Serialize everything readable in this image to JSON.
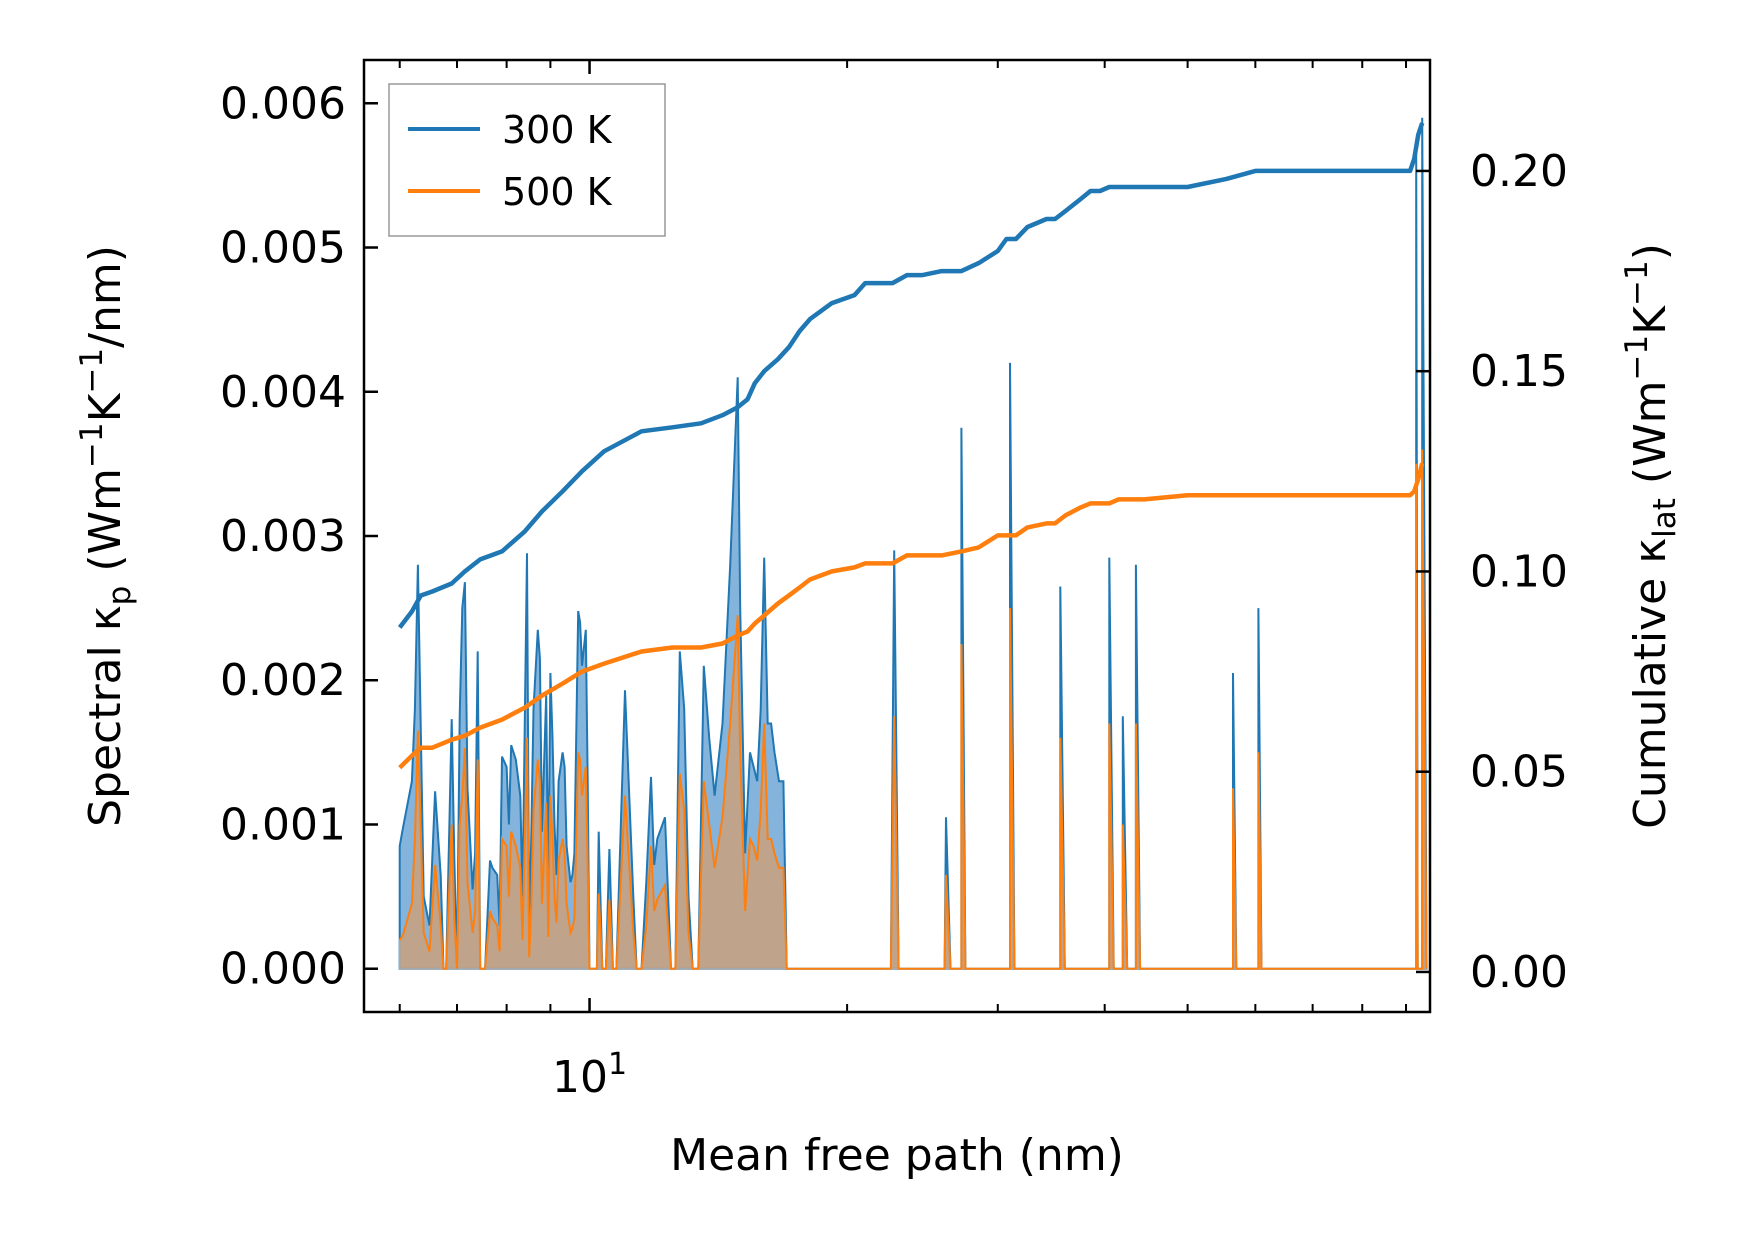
{
  "chart_data": {
    "type": "line",
    "x_scale": "log",
    "xlabel": "Mean free path (nm)",
    "ylabel_left": {
      "prefix": "Spectral κ",
      "sub": "p",
      "suffix": " (Wm",
      "sup1": "−1",
      "mid": "K",
      "sup2": "−1",
      "tail": "/nm)"
    },
    "ylabel_right": {
      "prefix": "Cumulative κ",
      "sub": "lat",
      "suffix": " (Wm",
      "sup1": "−1",
      "mid": "K",
      "sup2": "−1",
      "tail": ")"
    },
    "x_major_tick": {
      "base": "10",
      "exp": "1",
      "value": 10
    },
    "xlim": [
      5.45,
      96
    ],
    "ylim_left": [
      -0.0003,
      0.0063
    ],
    "ylim_right": [
      -0.01,
      0.2277
    ],
    "y_ticks_left": [
      "0.000",
      "0.001",
      "0.002",
      "0.003",
      "0.004",
      "0.005",
      "0.006"
    ],
    "y_ticks_right": [
      "0.00",
      "0.05",
      "0.10",
      "0.15",
      "0.20"
    ],
    "legend": {
      "position": "top-left",
      "entries": [
        "300 K",
        "500 K"
      ]
    },
    "colors": {
      "s300": "#1f77b4",
      "s500": "#ff7f0e",
      "fill300": "#5b9bd0",
      "fill500": "#c9a07c"
    },
    "spectral": {
      "x": [
        6.0,
        6.05,
        6.2,
        6.25,
        6.3,
        6.4,
        6.5,
        6.6,
        6.7,
        6.75,
        6.8,
        6.9,
        6.95,
        7.0,
        7.05,
        7.1,
        7.15,
        7.2,
        7.3,
        7.35,
        7.4,
        7.45,
        7.55,
        7.65,
        7.7,
        7.8,
        7.85,
        7.9,
        8.0,
        8.05,
        8.1,
        8.2,
        8.3,
        8.35,
        8.45,
        8.5,
        8.55,
        8.6,
        8.7,
        8.75,
        8.8,
        8.9,
        8.95,
        9.0,
        9.05,
        9.1,
        9.15,
        9.2,
        9.3,
        9.35,
        9.4,
        9.5,
        9.55,
        9.6,
        9.7,
        9.75,
        9.8,
        9.9,
        9.95,
        10.0,
        10.1,
        10.2,
        10.25,
        10.35,
        10.45,
        10.55,
        10.65,
        10.75,
        11.0,
        11.25,
        11.35,
        11.5,
        11.65,
        11.8,
        11.9,
        12.0,
        12.25,
        12.45,
        12.6,
        12.75,
        12.9,
        13.05,
        13.2,
        13.4,
        13.6,
        13.8,
        14.0,
        14.3,
        14.6,
        14.9,
        15.0,
        15.2,
        15.4,
        15.55,
        15.7,
        15.85,
        16.0,
        16.15,
        16.3,
        16.45,
        16.65,
        16.85,
        17.0,
        17.2,
        17.4,
        17.6,
        17.8,
        18.0,
        18.2,
        18.4,
        18.6,
        19.0,
        19.4,
        19.8,
        20.2,
        20.6,
        21.0,
        21.3,
        21.6,
        22.0,
        22.5,
        23.0,
        23.5,
        24.0,
        25.5,
        26.0,
        26.5,
        27.2,
        27.5,
        28.0,
        29.0,
        30.0,
        30.5,
        31.0,
        31.5,
        32.5,
        33.0,
        33.5,
        34.0,
        35.5,
        36.0,
        37.0,
        38.0,
        38.5,
        39.0,
        40.0,
        40.5,
        41.0,
        41.5,
        42.0,
        42.5,
        43.0,
        43.5,
        44.0,
        44.5,
        55.5,
        56.0,
        56.5,
        57.0,
        58.0,
        59.0,
        60.0,
        60.5,
        61.0,
        91.0,
        91.5,
        92.0,
        92.5,
        93.0,
        93.5,
        94.0
      ],
      "y300": [
        0.00085,
        0.00097,
        0.0013,
        0.0018,
        0.0028,
        0.0005,
        0.0003,
        0.00123,
        0.00065,
        0.0,
        0.0,
        0.00173,
        0.00077,
        0.0,
        0.00175,
        0.0025,
        0.00268,
        0.00125,
        0.00055,
        0.0008,
        0.0022,
        0.0,
        0.0,
        0.00075,
        0.0007,
        0.00065,
        0.0003,
        0.00147,
        0.0014,
        0.001,
        0.00155,
        0.00145,
        0.0012,
        0.0005,
        0.00288,
        0.0002,
        0.00093,
        0.0018,
        0.00235,
        0.00215,
        0.00095,
        0.0019,
        0.0005,
        0.00205,
        0.0016,
        0.001,
        0.00065,
        0.0013,
        0.0015,
        0.0014,
        0.00085,
        0.0006,
        0.00065,
        0.0008,
        0.00248,
        0.0024,
        0.0021,
        0.00235,
        0.0013,
        0.0,
        0.0,
        0.0,
        0.00095,
        0.0,
        0.0,
        0.00083,
        0.0,
        0.0,
        0.00193,
        0.0005,
        0.0,
        0.0,
        0.0006,
        0.00133,
        0.00072,
        0.0009,
        0.00105,
        0.0,
        0.0,
        0.0022,
        0.0018,
        0.0005,
        0.0,
        0.0,
        0.0021,
        0.0016,
        0.0012,
        0.0017,
        0.0028,
        0.0041,
        0.0025,
        0.0008,
        0.0015,
        0.0014,
        0.0013,
        0.0018,
        0.00285,
        0.0017,
        0.0017,
        0.0015,
        0.0013,
        0.0013,
        0.0,
        0.0,
        0.0,
        0.0,
        0.0,
        0.0,
        0.0,
        0.0,
        0.0,
        0.0,
        0.0,
        0.0,
        0.0,
        0.0,
        0.0,
        0.0,
        0.0,
        0.0,
        0.0,
        0.0,
        0.0,
        0.0,
        0.0,
        0.0,
        0.0,
        0.0,
        0.0,
        0.0,
        0.0,
        0.0,
        0.0,
        0.0,
        0.0,
        0.0,
        0.0,
        0.0,
        0.0,
        0.0,
        0.0,
        0.0,
        0.0,
        0.0,
        0.0,
        0.0,
        0.0,
        0.0,
        0.0,
        0.0,
        0.0,
        0.0,
        0.0,
        0.0,
        0.0,
        0.0,
        0.0,
        0.0,
        0.0,
        0.0,
        0.0,
        0.0,
        0.0,
        0.0,
        0.0,
        0.0,
        0.0,
        0.0,
        0.0,
        0.0,
        0.0
      ],
      "y500": [
        0.0002,
        0.00023,
        0.00045,
        0.0009,
        0.00165,
        0.00025,
        0.00012,
        0.00072,
        0.0003,
        0.0,
        0.0,
        0.001,
        0.00035,
        0.0,
        0.001,
        0.0012,
        0.00153,
        0.0006,
        0.00025,
        0.0004,
        0.00145,
        0.0,
        0.0,
        0.0004,
        0.00035,
        0.0003,
        0.00012,
        0.0009,
        0.00085,
        0.0005,
        0.00095,
        0.00085,
        0.0007,
        0.0002,
        0.0016,
        8e-05,
        0.00045,
        0.0011,
        0.00145,
        0.0013,
        0.00045,
        0.00115,
        0.00022,
        0.0012,
        0.0009,
        0.0005,
        0.00032,
        0.00075,
        0.0009,
        0.0008,
        0.00045,
        0.00025,
        0.00028,
        0.00035,
        0.0015,
        0.00145,
        0.0012,
        0.0014,
        0.0007,
        0.0,
        0.0,
        0.0,
        0.00052,
        0.0,
        0.0,
        0.00048,
        0.0,
        0.0,
        0.0012,
        0.00025,
        0.0,
        0.0,
        0.0003,
        0.00085,
        0.0004,
        0.00048,
        0.00058,
        0.0,
        0.0,
        0.00135,
        0.0011,
        0.00025,
        0.0,
        0.0,
        0.0013,
        0.001,
        0.0007,
        0.00105,
        0.0017,
        0.00245,
        0.0015,
        0.0004,
        0.0009,
        0.00085,
        0.00075,
        0.0011,
        0.0017,
        0.0009,
        0.0009,
        0.0008,
        0.0007,
        0.0007,
        0.0,
        0.0,
        0.0,
        0.0,
        0.0,
        0.0,
        0.0,
        0.0,
        0.0,
        0.0,
        0.0,
        0.0,
        0.0,
        0.0,
        0.0,
        0.0,
        0.0,
        0.0,
        0.0,
        0.0,
        0.0,
        0.0,
        0.0,
        0.0,
        0.0,
        0.0,
        0.0,
        0.0,
        0.0,
        0.0,
        0.0,
        0.0,
        0.0,
        0.0,
        0.0,
        0.0,
        0.0,
        0.0,
        0.0,
        0.0,
        0.0,
        0.0,
        0.0,
        0.0,
        0.0,
        0.0,
        0.0,
        0.0,
        0.0,
        0.0,
        0.0,
        0.0,
        0.0,
        0.0,
        0.0,
        0.0,
        0.0,
        0.0,
        0.0,
        0.0,
        0.0,
        0.0,
        0.0,
        0.0,
        0.0,
        0.0,
        0.0,
        0.0,
        0.0,
        0.0,
        0.0
      ]
    },
    "spikes": [
      {
        "x": 22.7,
        "y300": 0.0029,
        "y500": 0.00175
      },
      {
        "x": 26.1,
        "y300": 0.00105,
        "y500": 0.00065
      },
      {
        "x": 27.2,
        "y300": 0.00375,
        "y500": 0.00225
      },
      {
        "x": 31.0,
        "y300": 0.0042,
        "y500": 0.0025
      },
      {
        "x": 35.5,
        "y300": 0.00265,
        "y500": 0.0016
      },
      {
        "x": 40.5,
        "y300": 0.00285,
        "y500": 0.0017
      },
      {
        "x": 42.0,
        "y300": 0.00175,
        "y500": 0.001
      },
      {
        "x": 43.5,
        "y300": 0.0028,
        "y500": 0.0017
      },
      {
        "x": 56.5,
        "y300": 0.00205,
        "y500": 0.00125
      },
      {
        "x": 60.5,
        "y300": 0.0025,
        "y500": 0.0015
      },
      {
        "x": 92.5,
        "y300": 0.0057,
        "y500": 0.0035
      },
      {
        "x": 94.0,
        "y300": 0.0059,
        "y500": 0.0036
      }
    ],
    "cumulative": {
      "x": [
        6.0,
        6.2,
        6.35,
        6.55,
        6.9,
        7.15,
        7.45,
        7.9,
        8.4,
        8.8,
        9.3,
        9.8,
        10.4,
        11.5,
        12.5,
        13.5,
        14.3,
        14.9,
        15.3,
        15.6,
        16.0,
        16.6,
        17.1,
        17.6,
        18.1,
        19.2,
        20.4,
        21.0,
        22.0,
        22.6,
        23.5,
        24.5,
        25.8,
        27.2,
        28.5,
        30.0,
        30.7,
        31.5,
        32.5,
        34.2,
        35.0,
        36.0,
        37.5,
        38.5,
        39.5,
        40.5,
        41.5,
        42.8,
        44.5,
        50.0,
        55.5,
        60.0,
        70.0,
        91.0,
        92.0,
        93.0,
        94.0
      ],
      "c300": [
        0.086,
        0.09,
        0.094,
        0.095,
        0.097,
        0.1,
        0.103,
        0.105,
        0.11,
        0.115,
        0.12,
        0.125,
        0.13,
        0.135,
        0.136,
        0.137,
        0.139,
        0.141,
        0.143,
        0.147,
        0.15,
        0.153,
        0.156,
        0.16,
        0.163,
        0.167,
        0.169,
        0.172,
        0.172,
        0.172,
        0.174,
        0.174,
        0.175,
        0.175,
        0.177,
        0.18,
        0.183,
        0.183,
        0.186,
        0.188,
        0.188,
        0.19,
        0.193,
        0.195,
        0.195,
        0.196,
        0.196,
        0.196,
        0.196,
        0.196,
        0.198,
        0.2,
        0.2,
        0.2,
        0.203,
        0.209,
        0.212
      ],
      "c500": [
        0.051,
        0.054,
        0.056,
        0.056,
        0.058,
        0.059,
        0.061,
        0.063,
        0.066,
        0.069,
        0.072,
        0.075,
        0.077,
        0.08,
        0.081,
        0.081,
        0.082,
        0.084,
        0.085,
        0.087,
        0.089,
        0.092,
        0.094,
        0.096,
        0.098,
        0.1,
        0.101,
        0.102,
        0.102,
        0.102,
        0.104,
        0.104,
        0.104,
        0.105,
        0.106,
        0.109,
        0.109,
        0.109,
        0.111,
        0.112,
        0.112,
        0.114,
        0.116,
        0.117,
        0.117,
        0.117,
        0.118,
        0.118,
        0.118,
        0.119,
        0.119,
        0.119,
        0.119,
        0.119,
        0.12,
        0.123,
        0.127
      ]
    }
  }
}
